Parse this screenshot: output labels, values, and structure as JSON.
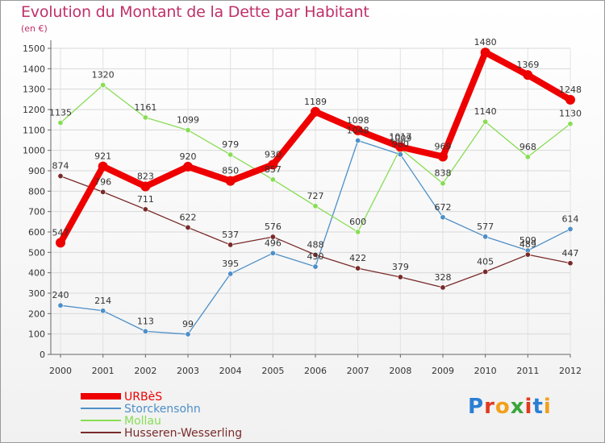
{
  "chart_data": {
    "type": "line",
    "title": "Evolution du Montant de la Dette par Habitant",
    "subtitle": "(en €)",
    "x": [
      "2000",
      "2001",
      "2002",
      "2003",
      "2004",
      "2005",
      "2006",
      "2007",
      "2008",
      "2009",
      "2010",
      "2011",
      "2012"
    ],
    "ylim": [
      0,
      1500
    ],
    "yticks": [
      0,
      100,
      200,
      300,
      400,
      500,
      600,
      700,
      800,
      900,
      1000,
      1100,
      1200,
      1300,
      1400,
      1500
    ],
    "grid": true,
    "legend_position": "bottom-left",
    "series": [
      {
        "name": "URBèS",
        "color": "#ee0000",
        "values": [
          547,
          921,
          823,
          920,
          850,
          930,
          1189,
          1098,
          1017,
          969,
          1480,
          1369,
          1248
        ]
      },
      {
        "name": "Storckensohn",
        "color": "#4d8fc8",
        "values": [
          240,
          214,
          113,
          99,
          395,
          496,
          430,
          1048,
          980,
          672,
          577,
          509,
          614
        ]
      },
      {
        "name": "Mollau",
        "color": "#88dd55",
        "values": [
          1135,
          1320,
          1161,
          1099,
          979,
          857,
          727,
          600,
          1009,
          838,
          1140,
          968,
          1130
        ]
      },
      {
        "name": "Husseren-Wesserling",
        "color": "#7a2a2a",
        "values": [
          874,
          796,
          711,
          622,
          537,
          576,
          488,
          422,
          379,
          328,
          405,
          489,
          447
        ]
      }
    ]
  },
  "logo": {
    "text": "Proxiti"
  }
}
